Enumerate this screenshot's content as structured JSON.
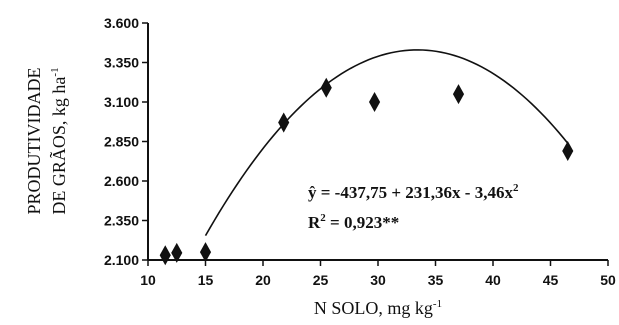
{
  "chart_data": {
    "type": "scatter",
    "xlabel": {
      "main": "N SOLO, mg kg",
      "sup": "-1"
    },
    "ylabel": {
      "line1": "PRODUTIVIDADE",
      "line2_main": "DE GRÃOS, kg ha",
      "line2_sup": "-1"
    },
    "xlim": [
      10,
      50
    ],
    "ylim": [
      2100,
      3600
    ],
    "x_ticks": [
      10,
      15,
      20,
      25,
      30,
      35,
      40,
      45,
      50
    ],
    "x_tick_labels": [
      "10",
      "15",
      "20",
      "25",
      "30",
      "35",
      "40",
      "45",
      "50"
    ],
    "y_ticks": [
      2100,
      2350,
      2600,
      2850,
      3100,
      3350,
      3600
    ],
    "y_tick_labels": [
      "2.100",
      "2.350",
      "2.600",
      "2.850",
      "3.100",
      "3.350",
      "3.600"
    ],
    "grid": false,
    "points": [
      {
        "x": 11.5,
        "y": 2130
      },
      {
        "x": 12.5,
        "y": 2145
      },
      {
        "x": 15.0,
        "y": 2150
      },
      {
        "x": 21.8,
        "y": 2970
      },
      {
        "x": 25.5,
        "y": 3190
      },
      {
        "x": 29.7,
        "y": 3100
      },
      {
        "x": 37.0,
        "y": 3150
      },
      {
        "x": 46.5,
        "y": 2790
      }
    ],
    "fit": {
      "type": "quadratic",
      "coefficients": {
        "a": -437.75,
        "b": 231.36,
        "c": -3.46
      },
      "x_range": [
        15,
        46.5
      ]
    },
    "equation": {
      "yhat": "ŷ",
      "rhs": " = -437,75 + 231,36x - 3,46x",
      "rhs_sup": "2",
      "r2_lead": "R",
      "r2_sup": "2",
      "r2_rest": " = 0,923**"
    }
  }
}
